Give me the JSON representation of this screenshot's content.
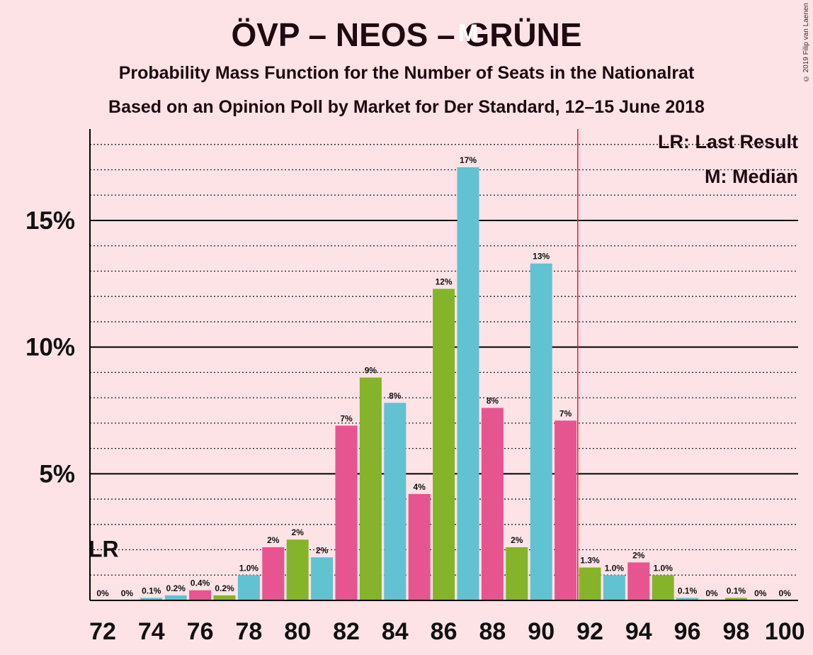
{
  "title": "ÖVP – NEOS – GRÜNE",
  "subtitle": "Probability Mass Function for the Number of Seats in the Nationalrat",
  "subtitle2": "Based on an Opinion Poll by Market for Der Standard, 12–15 June 2018",
  "copyright": "© 2019 Filip van Laenen",
  "legend": {
    "lr": "LR: Last Result",
    "m": "M: Median"
  },
  "colors": {
    "pink": "#e75590",
    "green": "#85b42a",
    "cyan": "#61c2d2",
    "majority_line": "#e8202a",
    "background": "#fde3e6"
  },
  "chart_data": {
    "type": "bar",
    "x": [
      72,
      73,
      74,
      75,
      76,
      77,
      78,
      79,
      80,
      81,
      82,
      83,
      84,
      85,
      86,
      87,
      88,
      89,
      90,
      91,
      92,
      93,
      94,
      95,
      96,
      97,
      98,
      99,
      100
    ],
    "values": [
      0,
      0,
      0.1,
      0.2,
      0.4,
      0.2,
      1.0,
      2.1,
      2.4,
      1.7,
      6.9,
      8.8,
      7.8,
      4.2,
      12.3,
      17.1,
      7.6,
      2.1,
      13.3,
      7.1,
      1.3,
      1.0,
      1.5,
      1.0,
      0.1,
      0,
      0.1,
      0,
      0
    ],
    "labels": [
      "0%",
      "0%",
      "0.1%",
      "0.2%",
      "0.4%",
      "0.2%",
      "1.0%",
      "2%",
      "2%",
      "2%",
      "7%",
      "9%",
      "8%",
      "4%",
      "12%",
      "17%",
      "8%",
      "2%",
      "13%",
      "7%",
      "1.3%",
      "1.0%",
      "2%",
      "1.0%",
      "0.1%",
      "0%",
      "0.1%",
      "0%",
      "0%"
    ],
    "bar_colors": [
      "pink",
      "green",
      "cyan",
      "cyan",
      "pink",
      "green",
      "cyan",
      "pink",
      "green",
      "cyan",
      "pink",
      "green",
      "cyan",
      "pink",
      "green",
      "cyan",
      "pink",
      "green",
      "cyan",
      "pink",
      "green",
      "cyan",
      "pink",
      "green",
      "cyan",
      "pink",
      "green",
      "cyan",
      "pink"
    ],
    "x_ticks": [
      72,
      74,
      76,
      78,
      80,
      82,
      84,
      86,
      88,
      90,
      92,
      94,
      96,
      98,
      100
    ],
    "y_ticks": [
      {
        "value": 5,
        "label": "5%"
      },
      {
        "value": 10,
        "label": "10%"
      },
      {
        "value": 15,
        "label": "15%"
      }
    ],
    "ylim": [
      0,
      18.6
    ],
    "last_result": {
      "x": 72,
      "label": "LR"
    },
    "median": {
      "x": 87,
      "label": "M"
    },
    "majority_line_x": 91.5,
    "grid": true
  }
}
